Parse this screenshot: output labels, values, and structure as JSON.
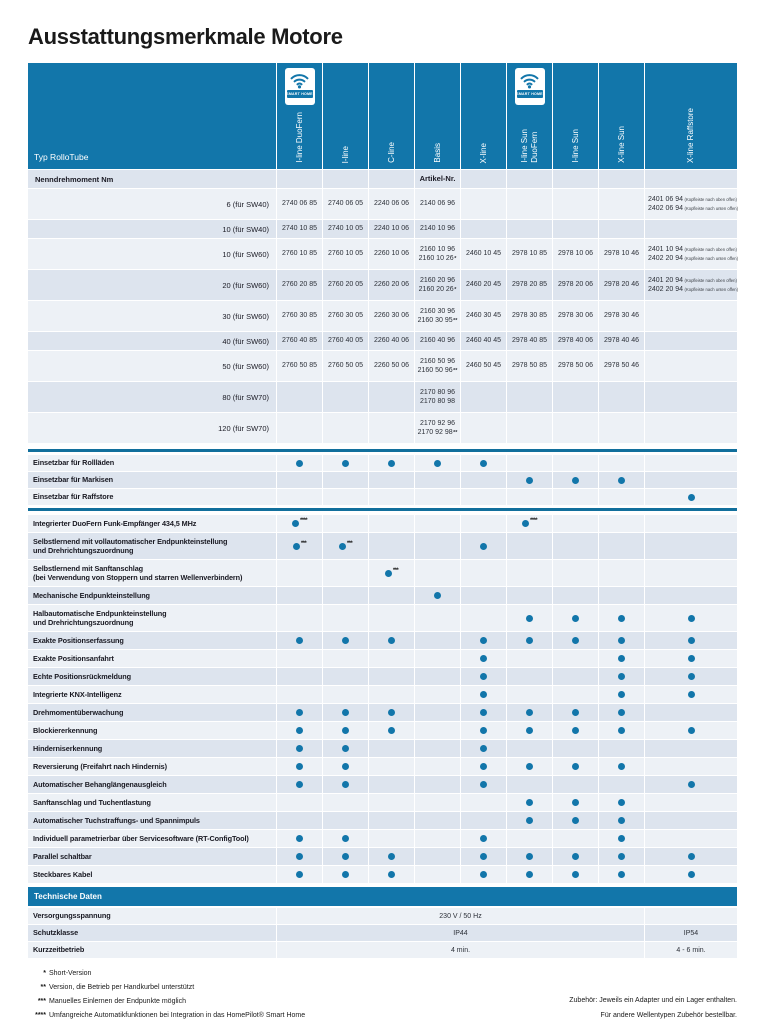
{
  "title": "Ausstattungsmerkmale Motore",
  "colors": {
    "brand_blue": "#1276aa",
    "stripe_light": "#edf1f6",
    "stripe_dark": "#dde4ee",
    "rule_blue": "#116f9c"
  },
  "header": {
    "type_label": "Typ RolloTube",
    "smart_home_label": "SMART HOME",
    "columns": [
      {
        "label": "I-line DuoFern",
        "smart_home": true
      },
      {
        "label": "I-line",
        "smart_home": false
      },
      {
        "label": "C-line",
        "smart_home": false
      },
      {
        "label": "Basis",
        "smart_home": false
      },
      {
        "label": "X-line",
        "smart_home": false
      },
      {
        "label": "I-line Sun\nDuoFern",
        "smart_home": true
      },
      {
        "label": "I-line Sun",
        "smart_home": false
      },
      {
        "label": "X-line Sun",
        "smart_home": false
      },
      {
        "label": "X-line Raffstore",
        "smart_home": false
      }
    ]
  },
  "artikel": {
    "row_header_left": "Nenndrehmoment Nm",
    "row_header_value": "Artikel-Nr.",
    "rows": [
      {
        "label": "6 (für SW40)",
        "cells": [
          [
            {
              "t": "2740 06 85"
            }
          ],
          [
            {
              "t": "2740 06 05"
            }
          ],
          [
            {
              "t": "2240 06 06"
            }
          ],
          [
            {
              "t": "2140 06 96"
            }
          ],
          [],
          [],
          [],
          [],
          [
            {
              "t": "2401 06 94",
              "note": "(Kopfleiste nach oben offen)"
            },
            {
              "t": "2402 06 94",
              "note": "(Kopfleiste nach unten offen)"
            }
          ]
        ]
      },
      {
        "label": "10 (für SW40)",
        "cells": [
          [
            {
              "t": "2740 10 85"
            }
          ],
          [
            {
              "t": "2740 10 05"
            }
          ],
          [
            {
              "t": "2240 10 06"
            }
          ],
          [
            {
              "t": "2140 10 96"
            }
          ],
          [],
          [],
          [],
          [],
          []
        ]
      },
      {
        "label": "10 (für SW60)",
        "cells": [
          [
            {
              "t": "2760 10 85"
            }
          ],
          [
            {
              "t": "2760 10 05"
            }
          ],
          [
            {
              "t": "2260 10 06"
            }
          ],
          [
            {
              "t": "2160 10 96"
            },
            {
              "t": "2160 10 26",
              "sup": "*"
            }
          ],
          [
            {
              "t": "2460 10 45"
            }
          ],
          [
            {
              "t": "2978 10 85"
            }
          ],
          [
            {
              "t": "2978 10 06"
            }
          ],
          [
            {
              "t": "2978 10 46"
            }
          ],
          [
            {
              "t": "2401 10 94",
              "note": "(Kopfleiste nach oben offen)"
            },
            {
              "t": "2402 20 94",
              "note": "(Kopfleiste nach unten offen)"
            }
          ]
        ]
      },
      {
        "label": "20 (für SW60)",
        "cells": [
          [
            {
              "t": "2760 20 85"
            }
          ],
          [
            {
              "t": "2760 20 05"
            }
          ],
          [
            {
              "t": "2260 20 06"
            }
          ],
          [
            {
              "t": "2160 20 96"
            },
            {
              "t": "2160 20 26",
              "sup": "*"
            }
          ],
          [
            {
              "t": "2460 20 45"
            }
          ],
          [
            {
              "t": "2978 20 85"
            }
          ],
          [
            {
              "t": "2978 20 06"
            }
          ],
          [
            {
              "t": "2978 20 46"
            }
          ],
          [
            {
              "t": "2401 20 94",
              "note": "(Kopfleiste nach oben offen)"
            },
            {
              "t": "2402 20 94",
              "note": "(Kopfleiste nach unten offen)"
            }
          ]
        ]
      },
      {
        "label": "30 (für SW60)",
        "cells": [
          [
            {
              "t": "2760 30 85"
            }
          ],
          [
            {
              "t": "2760 30 05"
            }
          ],
          [
            {
              "t": "2260 30 06"
            }
          ],
          [
            {
              "t": "2160 30 96"
            },
            {
              "t": "2160 30 95",
              "sup": "**"
            }
          ],
          [
            {
              "t": "2460 30 45"
            }
          ],
          [
            {
              "t": "2978 30 85"
            }
          ],
          [
            {
              "t": "2978 30 06"
            }
          ],
          [
            {
              "t": "2978 30 46"
            }
          ],
          []
        ]
      },
      {
        "label": "40 (für SW60)",
        "cells": [
          [
            {
              "t": "2760 40 85"
            }
          ],
          [
            {
              "t": "2760 40 05"
            }
          ],
          [
            {
              "t": "2260 40 06"
            }
          ],
          [
            {
              "t": "2160 40 96"
            }
          ],
          [
            {
              "t": "2460 40 45"
            }
          ],
          [
            {
              "t": "2978 40 85"
            }
          ],
          [
            {
              "t": "2978 40 06"
            }
          ],
          [
            {
              "t": "2978 40 46"
            }
          ],
          []
        ]
      },
      {
        "label": "50 (für SW60)",
        "cells": [
          [
            {
              "t": "2760 50 85"
            }
          ],
          [
            {
              "t": "2760 50 05"
            }
          ],
          [
            {
              "t": "2260 50 06"
            }
          ],
          [
            {
              "t": "2160 50 96"
            },
            {
              "t": "2160 50 96",
              "sup": "**"
            }
          ],
          [
            {
              "t": "2460 50 45"
            }
          ],
          [
            {
              "t": "2978 50 85"
            }
          ],
          [
            {
              "t": "2978 50 06"
            }
          ],
          [
            {
              "t": "2978 50 46"
            }
          ],
          []
        ]
      },
      {
        "label": "80 (für SW70)",
        "cells": [
          [],
          [],
          [],
          [
            {
              "t": "2170 80 96"
            },
            {
              "t": "2170 80 98"
            }
          ],
          [],
          [],
          [],
          [],
          []
        ]
      },
      {
        "label": "120 (für SW70)",
        "cells": [
          [],
          [],
          [],
          [
            {
              "t": "2170 92 96"
            },
            {
              "t": "2170 92 98",
              "sup": "**"
            }
          ],
          [],
          [],
          [],
          [],
          []
        ]
      }
    ]
  },
  "features_usage": [
    {
      "label": "Einsetzbar für Rollläden",
      "dots": [
        1,
        1,
        1,
        1,
        1,
        0,
        0,
        0,
        0
      ]
    },
    {
      "label": "Einsetzbar für Markisen",
      "dots": [
        0,
        0,
        0,
        0,
        0,
        1,
        1,
        1,
        0
      ]
    },
    {
      "label": "Einsetzbar für Raffstore",
      "dots": [
        0,
        0,
        0,
        0,
        0,
        0,
        0,
        0,
        1
      ]
    }
  ],
  "features": [
    {
      "label": "Integrierter DuoFern Funk-Empfänger 434,5 MHz",
      "dots": [
        "****",
        0,
        0,
        0,
        0,
        "****",
        0,
        0,
        0
      ]
    },
    {
      "label": "Selbstlernend mit vollautomatischer Endpunkteinstellung",
      "line2": "und Drehrichtungszuordnung",
      "dots": [
        "***",
        "***",
        0,
        0,
        1,
        0,
        0,
        0,
        0
      ]
    },
    {
      "label": "Selbstlernend mit Sanftanschlag",
      "line2": "(bei Verwendung von Stoppern und starren Wellenverbindern)",
      "dots": [
        0,
        0,
        "***",
        0,
        0,
        0,
        0,
        0,
        0
      ]
    },
    {
      "label": "Mechanische Endpunkteinstellung",
      "dots": [
        0,
        0,
        0,
        1,
        0,
        0,
        0,
        0,
        0
      ]
    },
    {
      "label": "Halbautomatische Endpunkteinstellung",
      "line2": "und Drehrichtungszuordnung",
      "dots": [
        0,
        0,
        0,
        0,
        0,
        1,
        1,
        1,
        1
      ]
    },
    {
      "label": "Exakte Positionserfassung",
      "dots": [
        1,
        1,
        1,
        0,
        1,
        1,
        1,
        1,
        1
      ]
    },
    {
      "label": "Exakte Positionsanfahrt",
      "dots": [
        0,
        0,
        0,
        0,
        1,
        0,
        0,
        1,
        1
      ]
    },
    {
      "label": "Echte Positionsrückmeldung",
      "dots": [
        0,
        0,
        0,
        0,
        1,
        0,
        0,
        1,
        1
      ]
    },
    {
      "label": "Integrierte KNX-Intelligenz",
      "dots": [
        0,
        0,
        0,
        0,
        1,
        0,
        0,
        1,
        1
      ]
    },
    {
      "label": "Drehmomentüberwachung",
      "dots": [
        1,
        1,
        1,
        0,
        1,
        1,
        1,
        1,
        0
      ]
    },
    {
      "label": "Blockiererkennung",
      "dots": [
        1,
        1,
        1,
        0,
        1,
        1,
        1,
        1,
        1
      ]
    },
    {
      "label": "Hinderniserkennung",
      "dots": [
        1,
        1,
        0,
        0,
        1,
        0,
        0,
        0,
        0
      ]
    },
    {
      "label": "Reversierung (Freifahrt nach Hindernis)",
      "dots": [
        1,
        1,
        0,
        0,
        1,
        1,
        1,
        1,
        0
      ]
    },
    {
      "label": "Automatischer Behanglängenausgleich",
      "dots": [
        1,
        1,
        0,
        0,
        1,
        0,
        0,
        0,
        1
      ]
    },
    {
      "label": "Sanftanschlag und Tuchentlastung",
      "dots": [
        0,
        0,
        0,
        0,
        0,
        1,
        1,
        1,
        0
      ]
    },
    {
      "label": "Automatischer Tuchstraffungs- und Spannimpuls",
      "dots": [
        0,
        0,
        0,
        0,
        0,
        1,
        1,
        1,
        0
      ]
    },
    {
      "label": "Individuell parametrierbar über Servicesoftware (RT-ConfigTool)",
      "dots": [
        1,
        1,
        0,
        0,
        1,
        0,
        0,
        1,
        0
      ]
    },
    {
      "label": "Parallel schaltbar",
      "dots": [
        1,
        1,
        1,
        0,
        1,
        1,
        1,
        1,
        1
      ]
    },
    {
      "label": "Steckbares Kabel",
      "dots": [
        1,
        1,
        1,
        0,
        1,
        1,
        1,
        1,
        1
      ]
    }
  ],
  "tech": {
    "band_label": "Technische Daten",
    "rows": [
      {
        "label": "Versorgungsspannung",
        "value": "230 V / 50 Hz",
        "last": ""
      },
      {
        "label": "Schutzklasse",
        "value": "IP44",
        "last": "IP54"
      },
      {
        "label": "Kurzzeitbetrieb",
        "value": "4 min.",
        "last": "4 - 6 min."
      }
    ]
  },
  "footnotes": {
    "left": [
      {
        "mark": "*",
        "text": "Short-Version"
      },
      {
        "mark": "**",
        "text": "Version, die Betrieb per Handkurbel unterstützt"
      },
      {
        "mark": "***",
        "text": "Manuelles Einlernen der Endpunkte möglich"
      },
      {
        "mark": "****",
        "text": "Umfangreiche Automatikfunktionen bei Integration in das HomePilot® Smart Home"
      }
    ],
    "right": [
      "Zubehör: Jeweils ein Adapter und ein Lager enthalten.",
      "Für andere Wellentypen Zubehör bestellbar."
    ]
  }
}
